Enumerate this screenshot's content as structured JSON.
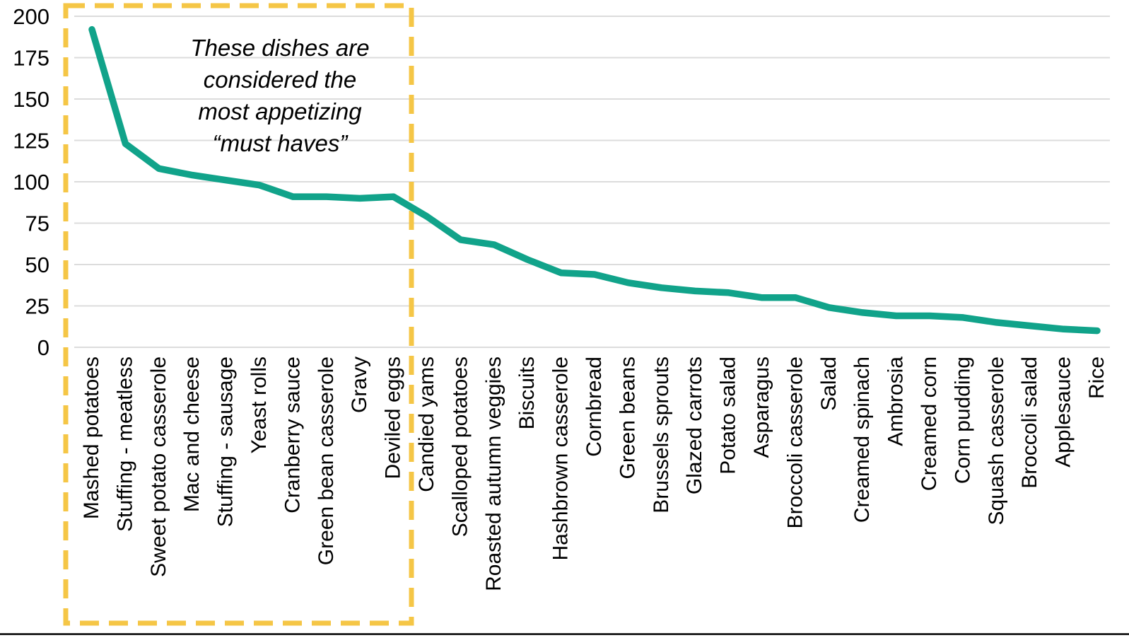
{
  "chart_data": {
    "type": "line",
    "title": "",
    "categories": [
      "Mashed potatoes",
      "Stuffing - meatless",
      "Sweet potato casserole",
      "Mac and cheese",
      "Stuffing - sausage",
      "Yeast rolls",
      "Cranberry sauce",
      "Green bean casserole",
      "Gravy",
      "Deviled eggs",
      "Candied yams",
      "Scalloped potatoes",
      "Roasted autumn veggies",
      "Biscuits",
      "Hashbrown casserole",
      "Cornbread",
      "Green beans",
      "Brussels sprouts",
      "Glazed carrots",
      "Potato salad",
      "Asparagus",
      "Broccoli casserole",
      "Salad",
      "Creamed spinach",
      "Ambrosia",
      "Creamed corn",
      "Corn pudding",
      "Squash casserole",
      "Broccoli salad",
      "Applesauce",
      "Rice"
    ],
    "values": [
      192,
      123,
      108,
      104,
      101,
      98,
      91,
      91,
      90,
      91,
      79,
      65,
      62,
      53,
      45,
      44,
      39,
      36,
      34,
      33,
      30,
      30,
      24,
      21,
      19,
      19,
      18,
      15,
      13,
      11,
      10
    ],
    "ylim": [
      0,
      200
    ],
    "yticks": [
      0,
      25,
      50,
      75,
      100,
      125,
      150,
      175,
      200
    ],
    "grid": true,
    "legend": "none",
    "xlabel": "",
    "ylabel": "",
    "annotation": {
      "text_lines": [
        "These dishes are",
        "considered the",
        "most appetizing",
        "“must haves”"
      ],
      "highlighted_first_n_categories": 10,
      "highlighted_categories_range": [
        "Mashed potatoes",
        "Deviled eggs"
      ]
    },
    "colors": {
      "line": "#11A38A",
      "highlight_box": "#F5C646",
      "gridline": "#DCDCDC",
      "text": "#000000",
      "background": "#FFFFFF",
      "bottom_border": "#000000"
    }
  }
}
